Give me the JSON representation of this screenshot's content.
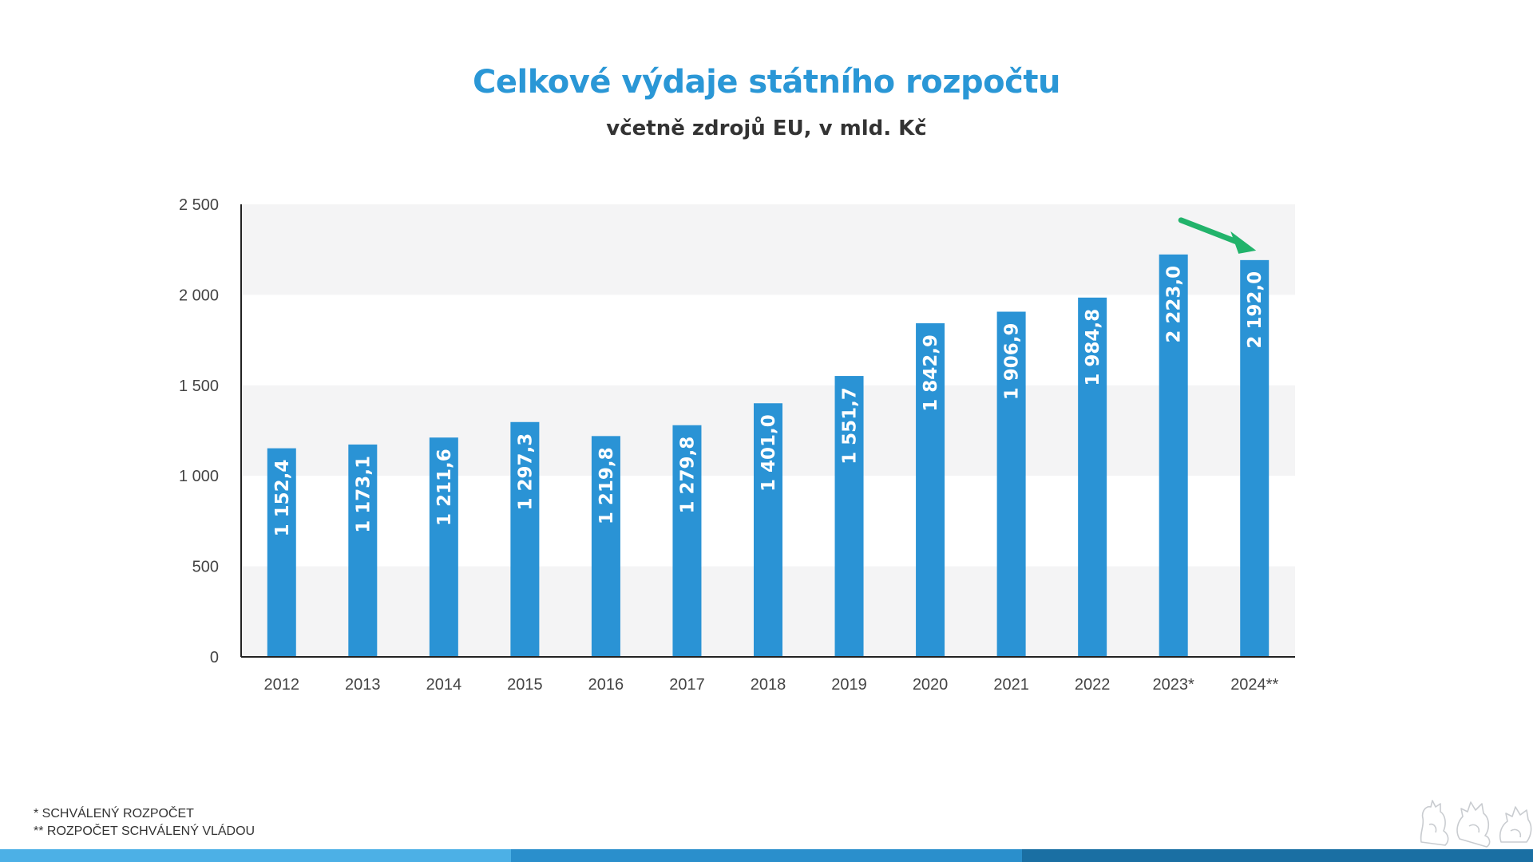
{
  "header": {
    "title": "Celkové výdaje státního rozpočtu",
    "subtitle": "včetně zdrojů EU, v mld. Kč"
  },
  "footnotes": {
    "note1": "* SCHVÁLENÝ ROZPOČET",
    "note2": "** ROZPOČET SCHVÁLENÝ VLÁDOU"
  },
  "colors": {
    "title": "#2a97d6",
    "bar": "#2a93d5",
    "band": "#f4f4f5",
    "arrow": "#22b36b",
    "stripe": [
      "#4cb0e6",
      "#2a8fcc",
      "#1a6fa3"
    ]
  },
  "chart_data": {
    "type": "bar",
    "categories": [
      "2012",
      "2013",
      "2014",
      "2015",
      "2016",
      "2017",
      "2018",
      "2019",
      "2020",
      "2021",
      "2022",
      "2023*",
      "2024**"
    ],
    "values": [
      1152.4,
      1173.1,
      1211.6,
      1297.3,
      1219.8,
      1279.8,
      1401.0,
      1551.7,
      1842.9,
      1906.9,
      1984.8,
      2223.0,
      2192.0
    ],
    "value_labels": [
      "1 152,4",
      "1 173,1",
      "1 211,6",
      "1 297,3",
      "1 219,8",
      "1 279,8",
      "1 401,0",
      "1 551,7",
      "1 842,9",
      "1 906,9",
      "1 984,8",
      "2 223,0",
      "2 192,0"
    ],
    "yticks": [
      0,
      500,
      1000,
      1500,
      2000,
      2500
    ],
    "ytick_labels": [
      "0",
      "500",
      "1 000",
      "1 500",
      "2 000",
      "2 500"
    ],
    "ylim": [
      0,
      2500
    ],
    "grid": "alternating bands",
    "annotation": "arrow pointing down to 2024** bar",
    "xlabel": "",
    "ylabel": ""
  }
}
